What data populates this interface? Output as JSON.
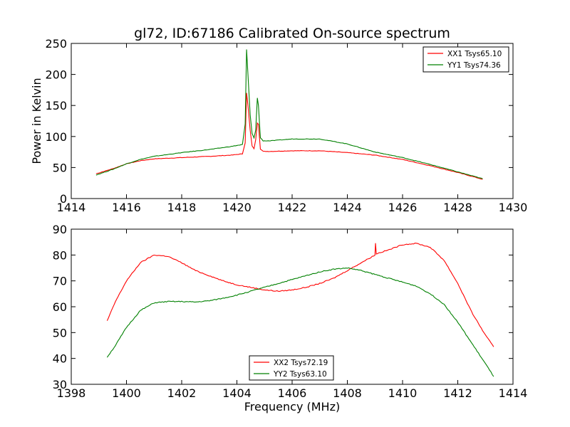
{
  "title": "gl72, ID:67186 Calibrated On-source spectrum",
  "chart_data": [
    {
      "type": "line",
      "ylabel": "Power in Kelvin",
      "xlabel": "",
      "xlim": [
        1414,
        1430
      ],
      "ylim": [
        0,
        250
      ],
      "xticks": [
        "1414",
        "1416",
        "1418",
        "1420",
        "1422",
        "1424",
        "1426",
        "1428",
        "1430"
      ],
      "yticks": [
        "0",
        "50",
        "100",
        "150",
        "200",
        "250"
      ],
      "legend_position": "top-right",
      "grid": false,
      "series": [
        {
          "name": "XX1 Tsys65.10",
          "color": "#ff0000",
          "x": [
            1414.9,
            1415.5,
            1416.0,
            1416.5,
            1417.0,
            1418.0,
            1419.0,
            1419.8,
            1420.2,
            1420.3,
            1420.35,
            1420.4,
            1420.48,
            1420.55,
            1420.62,
            1420.68,
            1420.74,
            1420.78,
            1420.85,
            1420.95,
            1421.2,
            1422.0,
            1423.0,
            1424.0,
            1425.0,
            1426.0,
            1427.0,
            1428.0,
            1428.9
          ],
          "y": [
            40,
            48,
            56,
            61,
            64,
            66,
            68,
            70,
            72,
            90,
            170,
            150,
            110,
            85,
            80,
            95,
            122,
            120,
            80,
            76,
            76,
            77,
            77,
            74,
            70,
            63,
            53,
            42,
            31
          ]
        },
        {
          "name": "YY1 Tsys74.36",
          "color": "#008000",
          "x": [
            1414.9,
            1415.5,
            1416.0,
            1416.5,
            1417.0,
            1418.0,
            1419.0,
            1419.8,
            1420.2,
            1420.3,
            1420.35,
            1420.4,
            1420.48,
            1420.55,
            1420.62,
            1420.68,
            1420.74,
            1420.78,
            1420.85,
            1420.95,
            1421.2,
            1422.0,
            1423.0,
            1424.0,
            1425.0,
            1426.0,
            1427.0,
            1428.0,
            1428.9
          ],
          "y": [
            38,
            47,
            56,
            63,
            68,
            74,
            79,
            84,
            87,
            120,
            240,
            200,
            135,
            105,
            98,
            110,
            162,
            150,
            98,
            93,
            93,
            96,
            96,
            88,
            75,
            66,
            55,
            43,
            32
          ]
        }
      ]
    },
    {
      "type": "line",
      "ylabel": "",
      "xlabel": "Frequency (MHz)",
      "xlim": [
        1398,
        1414
      ],
      "ylim": [
        30,
        90
      ],
      "xticks": [
        "1398",
        "1400",
        "1402",
        "1404",
        "1406",
        "1408",
        "1410",
        "1412",
        "1414"
      ],
      "yticks": [
        "30",
        "40",
        "50",
        "60",
        "70",
        "80",
        "90"
      ],
      "legend_position": "lower-center",
      "grid": false,
      "series": [
        {
          "name": "XX2 Tsys72.19",
          "color": "#ff0000",
          "x": [
            1399.3,
            1399.6,
            1400.0,
            1400.5,
            1401.0,
            1401.5,
            1402.0,
            1402.5,
            1403.0,
            1403.5,
            1404.0,
            1404.5,
            1405.0,
            1405.5,
            1406.0,
            1406.5,
            1407.0,
            1407.5,
            1408.0,
            1408.5,
            1409.0,
            1409.02,
            1409.05,
            1409.5,
            1410.0,
            1410.5,
            1411.0,
            1411.5,
            1412.0,
            1412.5,
            1413.0,
            1413.3
          ],
          "y": [
            54.5,
            62,
            70,
            77,
            80,
            79.5,
            77,
            74,
            72,
            70,
            68.5,
            67.5,
            66.5,
            66,
            66.5,
            67.5,
            69,
            71,
            74,
            77,
            80,
            84.5,
            80.5,
            82,
            84,
            84.5,
            83,
            78,
            69,
            58,
            49,
            44.5
          ]
        },
        {
          "name": "YY2 Tsys63.10",
          "color": "#008000",
          "x": [
            1399.3,
            1399.6,
            1400.0,
            1400.5,
            1401.0,
            1401.5,
            1402.0,
            1402.5,
            1403.0,
            1403.5,
            1404.0,
            1404.5,
            1405.0,
            1405.5,
            1406.0,
            1406.5,
            1407.0,
            1407.5,
            1408.0,
            1408.5,
            1409.0,
            1409.5,
            1410.0,
            1410.5,
            1411.0,
            1411.5,
            1412.0,
            1412.5,
            1413.0,
            1413.3
          ],
          "y": [
            40.5,
            45,
            52,
            58.5,
            61.5,
            62,
            62,
            61.8,
            62.3,
            63.3,
            64.5,
            66,
            67.5,
            69,
            70.5,
            72,
            73.5,
            74.5,
            75,
            74,
            72.5,
            71,
            69.5,
            68,
            65,
            61,
            54,
            46,
            38,
            33
          ]
        }
      ]
    }
  ]
}
